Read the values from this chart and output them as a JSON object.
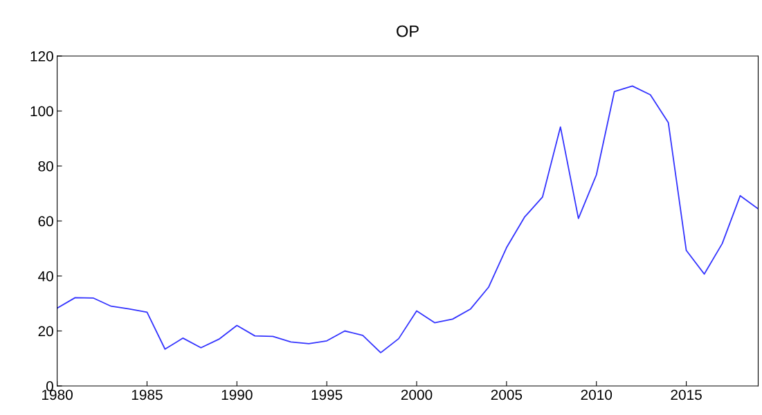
{
  "chart_data": {
    "type": "line",
    "title": "OP",
    "x": [
      1980,
      1981,
      1982,
      1983,
      1984,
      1985,
      1986,
      1987,
      1988,
      1989,
      1990,
      1991,
      1992,
      1993,
      1994,
      1995,
      1996,
      1997,
      1998,
      1999,
      2000,
      2001,
      2002,
      2003,
      2004,
      2005,
      2006,
      2007,
      2008,
      2009,
      2010,
      2011,
      2012,
      2013,
      2014,
      2015,
      2016,
      2017,
      2018,
      2019
    ],
    "series": [
      {
        "color": "#3333ff",
        "values": [
          28.3,
          32.1,
          32,
          29,
          28,
          26.8,
          13.4,
          17.4,
          13.9,
          17,
          22,
          18.2,
          18,
          16,
          15.4,
          16.4,
          20,
          18.4,
          12.1,
          17.2,
          27.3,
          23,
          24.3,
          28,
          35.9,
          50.3,
          61.4,
          68.7,
          94.2,
          60.9,
          76.8,
          107.1,
          109.1,
          105.9,
          95.8,
          49.3,
          40.7,
          51.8,
          69.2,
          64.4
        ]
      }
    ],
    "xlim": [
      1980,
      2019
    ],
    "xticks": [
      1980,
      1985,
      1990,
      1995,
      2000,
      2005,
      2010,
      2015
    ],
    "ylim": [
      0,
      120
    ],
    "yticks": [
      0,
      20,
      40,
      60,
      80,
      100,
      120
    ],
    "grid": false,
    "legend": false,
    "marker": "none",
    "line_style": "solid"
  }
}
